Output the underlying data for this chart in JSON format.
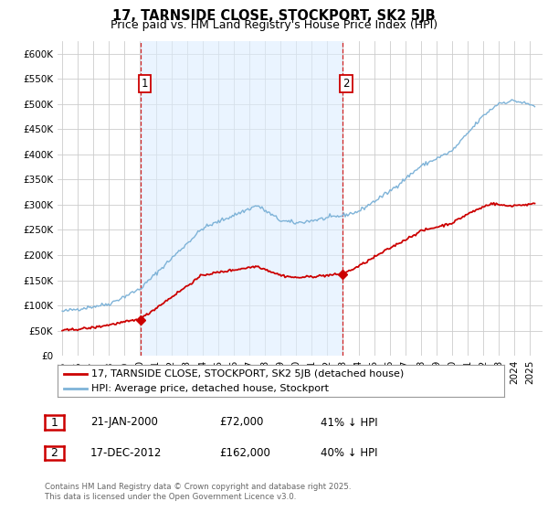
{
  "title": "17, TARNSIDE CLOSE, STOCKPORT, SK2 5JB",
  "subtitle": "Price paid vs. HM Land Registry's House Price Index (HPI)",
  "ylim": [
    0,
    625000
  ],
  "yticks": [
    0,
    50000,
    100000,
    150000,
    200000,
    250000,
    300000,
    350000,
    400000,
    450000,
    500000,
    550000,
    600000
  ],
  "ytick_labels": [
    "£0",
    "£50K",
    "£100K",
    "£150K",
    "£200K",
    "£250K",
    "£300K",
    "£350K",
    "£400K",
    "£450K",
    "£500K",
    "£550K",
    "£600K"
  ],
  "xlim_start": 1994.7,
  "xlim_end": 2025.8,
  "sale1_x": 2000.055,
  "sale1_y": 72000,
  "sale1_label": "1",
  "sale1_date": "21-JAN-2000",
  "sale1_price": "£72,000",
  "sale1_hpi": "41% ↓ HPI",
  "sale2_x": 2012.96,
  "sale2_y": 162000,
  "sale2_label": "2",
  "sale2_date": "17-DEC-2012",
  "sale2_price": "£162,000",
  "sale2_hpi": "40% ↓ HPI",
  "line_color_property": "#cc0000",
  "line_color_hpi": "#7eb3d8",
  "vline_color": "#cc0000",
  "shade_color": "#ddeeff",
  "legend_label1": "17, TARNSIDE CLOSE, STOCKPORT, SK2 5JB (detached house)",
  "legend_label2": "HPI: Average price, detached house, Stockport",
  "footer": "Contains HM Land Registry data © Crown copyright and database right 2025.\nThis data is licensed under the Open Government Licence v3.0.",
  "background_color": "#ffffff",
  "grid_color": "#cccccc",
  "title_fontsize": 10.5,
  "subtitle_fontsize": 9,
  "tick_fontsize": 7.5,
  "legend_fontsize": 8
}
